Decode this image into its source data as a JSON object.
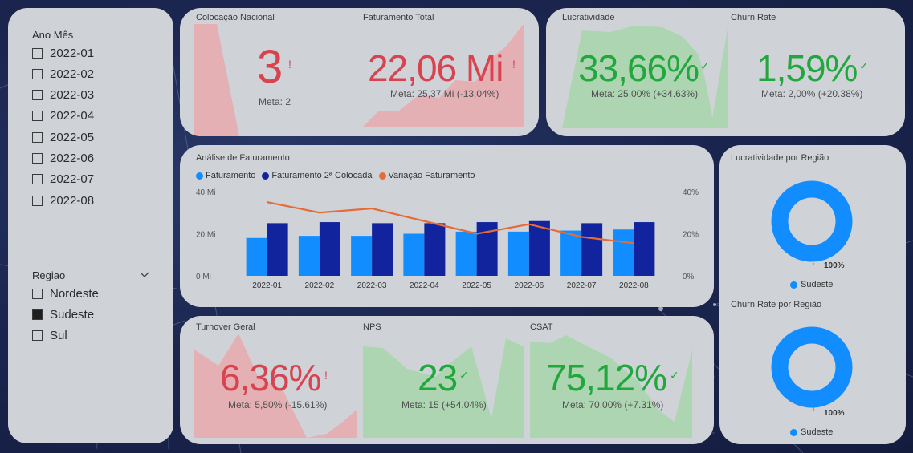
{
  "colors": {
    "red": "#d9434f",
    "green": "#21a83d",
    "bar_primary": "#118dff",
    "bar_secondary": "#12239e",
    "line": "#e66c37",
    "area_red": "#e8a9ae",
    "area_green": "#a8d5ae",
    "card_bg": "#cfd3d8"
  },
  "slicer_month": {
    "title": "Ano Mês",
    "items": [
      "2022-01",
      "2022-02",
      "2022-03",
      "2022-04",
      "2022-05",
      "2022-06",
      "2022-07",
      "2022-08"
    ]
  },
  "slicer_region": {
    "title": "Regiao",
    "items": [
      {
        "label": "Nordeste",
        "checked": false
      },
      {
        "label": "Sudeste",
        "checked": true
      },
      {
        "label": "Sul",
        "checked": false
      }
    ],
    "dropdown_icon": "chevron-down-icon"
  },
  "kpis": {
    "colocacao": {
      "title": "Colocação Nacional",
      "value": "3",
      "flag": "!",
      "meta": "Meta: 2"
    },
    "faturamento": {
      "title": "Faturamento Total",
      "value": "22,06 Mi",
      "flag": "!",
      "meta": "Meta: 25,37 Mi (-13.04%)"
    },
    "lucratividade": {
      "title": "Lucratividade",
      "value": "33,66%",
      "flag": "✓",
      "meta": "Meta: 25,00% (+34.63%)"
    },
    "churn": {
      "title": "Churn Rate",
      "value": "1,59%",
      "flag": "✓",
      "meta": "Meta: 2,00% (+20.38%)"
    },
    "turnover": {
      "title": "Turnover Geral",
      "value": "6,36%",
      "flag": "!",
      "meta": "Meta: 5,50% (-15.61%)"
    },
    "nps": {
      "title": "NPS",
      "value": "23",
      "flag": "✓",
      "meta": "Meta: 15 (+54.04%)"
    },
    "csat": {
      "title": "CSAT",
      "value": "75,12%",
      "flag": "✓",
      "meta": "Meta: 70,00% (+7.31%)"
    }
  },
  "chart_data": [
    {
      "type": "bar",
      "title": "Análise de Faturamento",
      "categories": [
        "2022-01",
        "2022-02",
        "2022-03",
        "2022-04",
        "2022-05",
        "2022-06",
        "2022-07",
        "2022-08"
      ],
      "series": [
        {
          "name": "Faturamento",
          "kind": "bar",
          "axis": "left",
          "values": [
            18,
            19,
            19,
            20,
            21,
            21,
            21.5,
            22
          ]
        },
        {
          "name": "Faturamento 2ª Colocada",
          "kind": "bar",
          "axis": "left",
          "values": [
            25,
            25.5,
            25,
            25,
            25.5,
            26,
            25,
            25.5
          ]
        },
        {
          "name": "Variação Faturamento",
          "kind": "line",
          "axis": "right",
          "values": [
            35,
            30,
            32,
            26,
            20,
            24.5,
            18.5,
            15.5
          ]
        }
      ],
      "y_left_ticks": [
        "40 Mi",
        "20 Mi",
        "0 Mi"
      ],
      "y_left_range": [
        0,
        40
      ],
      "y_right_ticks": [
        "40%",
        "20%",
        "0%"
      ],
      "y_right_range": [
        0,
        40
      ],
      "legend_position": "top-left",
      "grid": false
    },
    {
      "type": "pie",
      "title": "Lucratividade por Região",
      "slices": [
        {
          "name": "Sudeste",
          "value": 100
        }
      ],
      "slice_label": "100%",
      "legend": [
        "Sudeste"
      ]
    },
    {
      "type": "pie",
      "title": "Churn Rate por Região",
      "slices": [
        {
          "name": "Sudeste",
          "value": 100
        }
      ],
      "slice_label": "100%",
      "legend": [
        "Sudeste"
      ]
    }
  ]
}
